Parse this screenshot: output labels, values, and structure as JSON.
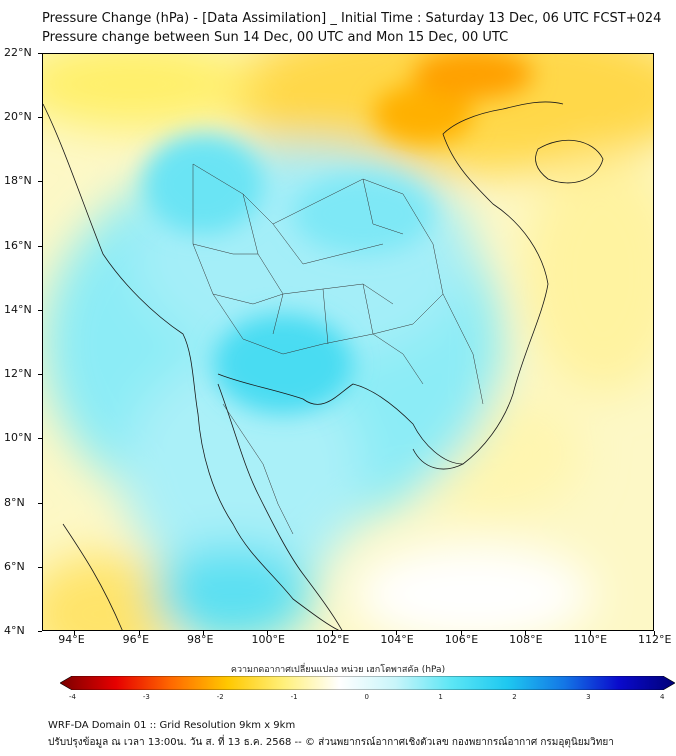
{
  "header": {
    "title_line1": "Pressure Change (hPa) - [Data Assimilation] _ Initial Time : Saturday 13 Dec, 06 UTC FCST+024",
    "title_line2": "Pressure change between Sun 14 Dec, 00 UTC and Mon 15 Dec, 00 UTC"
  },
  "map": {
    "lat_labels": [
      "22°N",
      "20°N",
      "18°N",
      "16°N",
      "14°N",
      "12°N",
      "10°N",
      "8°N",
      "6°N",
      "4°N"
    ],
    "lon_labels": [
      "94°E",
      "96°E",
      "98°E",
      "100°E",
      "102°E",
      "104°E",
      "106°E",
      "108°E",
      "110°E",
      "112°E"
    ],
    "lat_range": [
      4,
      22
    ],
    "lon_range": [
      93,
      112
    ]
  },
  "colorbar": {
    "label": "ความกดอากาศเปลี่ยนแปลง หน่วย เฮกโตพาสคัล (hPa)",
    "ticks": [
      "-4",
      "-3",
      "-2",
      "-1",
      "0",
      "1",
      "2",
      "3",
      "4"
    ],
    "range": [
      -4,
      4
    ],
    "colors": [
      "#7a0000",
      "#e60000",
      "#ff6a00",
      "#ffc800",
      "#fff07a",
      "#ffffff",
      "#c8f5fa",
      "#5ce6f5",
      "#1ec8f0",
      "#1478e6",
      "#0a0acc",
      "#000078"
    ]
  },
  "footer": {
    "line1": "WRF-DA Domain 01 :: Grid Resolution 9km x 9km",
    "line2": "ปรับปรุงข้อมูล ณ เวลา 13:00น. วัน ส. ที่ 13 ธ.ค. 2568 -- © ส่วนพยากรณ์อากาศเชิงตัวเลข กองพยากรณ์อากาศ กรมอุตุนิยมวิทยา"
  }
}
